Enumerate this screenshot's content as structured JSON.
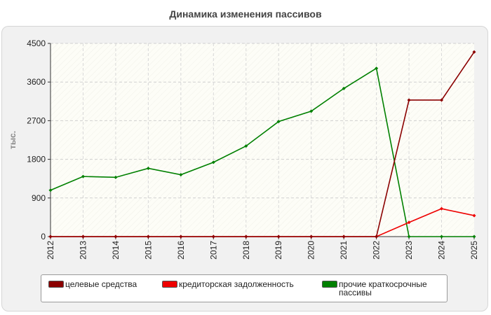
{
  "chart_data": {
    "type": "line",
    "title": "Динамика изменения пассивов",
    "ylabel": "тыс.",
    "xlabel": "",
    "categories": [
      "2012",
      "2013",
      "2014",
      "2015",
      "2016",
      "2017",
      "2018",
      "2019",
      "2020",
      "2021",
      "2022",
      "2023",
      "2024",
      "2025"
    ],
    "ylim": [
      0,
      4500
    ],
    "yticks": [
      "0",
      "900",
      "1800",
      "2700",
      "3600",
      "4500"
    ],
    "grid": true,
    "legend_position": "bottom",
    "series": [
      {
        "name": "целевые средства",
        "color": "#8b0000",
        "values": [
          0,
          0,
          0,
          0,
          0,
          0,
          0,
          0,
          0,
          0,
          0,
          3180,
          3180,
          4300
        ]
      },
      {
        "name": "кредиторская задолженность",
        "color": "#ee0000",
        "values": [
          0,
          0,
          0,
          0,
          0,
          0,
          0,
          0,
          0,
          0,
          0,
          330,
          650,
          490
        ]
      },
      {
        "name": "прочие краткосрочные пассивы",
        "color": "#008000",
        "values": [
          1080,
          1400,
          1380,
          1590,
          1440,
          1730,
          2110,
          2680,
          2920,
          3450,
          3920,
          0,
          0,
          0
        ]
      }
    ]
  }
}
